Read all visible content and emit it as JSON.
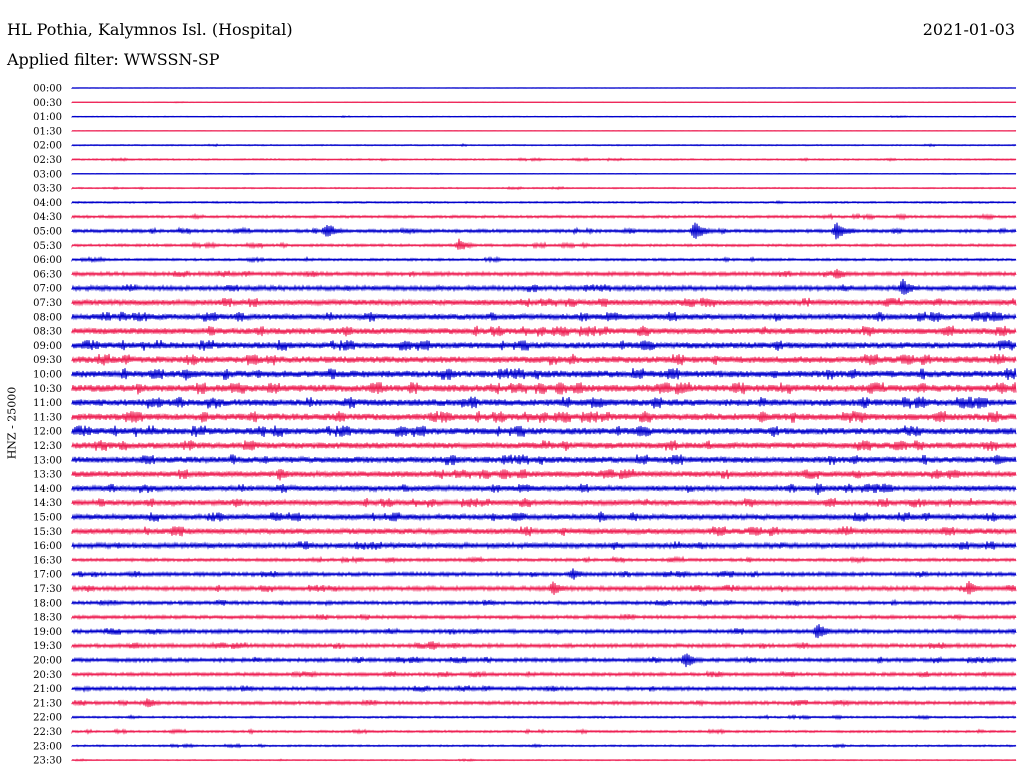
{
  "header": {
    "station": "HL Pothia, Kalymnos Isl. (Hospital)",
    "date": "2021-01-03",
    "filter": "Applied filter: WWSSN-SP"
  },
  "axis": {
    "ylabel": "HNZ - 25000"
  },
  "colors": {
    "even_rows": "#0000cc",
    "odd_rows": "#ee2255"
  },
  "chart_data": {
    "type": "line",
    "ylabel": "HNZ - 25000",
    "rows": [
      "00:00",
      "00:30",
      "01:00",
      "01:30",
      "02:00",
      "02:30",
      "03:00",
      "03:30",
      "04:00",
      "04:30",
      "05:00",
      "05:30",
      "06:00",
      "06:30",
      "07:00",
      "07:30",
      "08:00",
      "08:30",
      "09:00",
      "09:30",
      "10:00",
      "10:30",
      "11:00",
      "11:30",
      "12:00",
      "12:30",
      "13:00",
      "13:30",
      "14:00",
      "14:30",
      "15:00",
      "15:30",
      "16:00",
      "16:30",
      "17:00",
      "17:30",
      "18:00",
      "18:30",
      "19:00",
      "19:30",
      "20:00",
      "20:30",
      "21:00",
      "21:30",
      "22:00",
      "22:30",
      "23:00",
      "23:30"
    ],
    "noise_level": [
      0.2,
      0.3,
      0.4,
      0.2,
      0.6,
      0.7,
      0.3,
      0.6,
      0.8,
      1.2,
      1.5,
      1.2,
      1.1,
      1.8,
      2.2,
      2.6,
      2.8,
      3.0,
      3.0,
      3.2,
      3.3,
      3.4,
      3.3,
      3.3,
      3.2,
      3.0,
      3.0,
      2.8,
      2.6,
      2.6,
      2.6,
      2.8,
      2.4,
      1.4,
      1.8,
      2.0,
      1.6,
      1.6,
      1.8,
      1.8,
      1.8,
      1.6,
      1.7,
      1.6,
      0.9,
      1.0,
      0.8,
      0.5
    ],
    "events": [
      {
        "row": "05:00",
        "time_fraction": 0.27,
        "amplitude": 9
      },
      {
        "row": "05:00",
        "time_fraction": 0.66,
        "amplitude": 11
      },
      {
        "row": "05:00",
        "time_fraction": 0.81,
        "amplitude": 10
      },
      {
        "row": "05:30",
        "time_fraction": 0.41,
        "amplitude": 7
      },
      {
        "row": "06:30",
        "time_fraction": 0.81,
        "amplitude": 7
      },
      {
        "row": "07:00",
        "time_fraction": 0.88,
        "amplitude": 10
      },
      {
        "row": "10:00",
        "time_fraction": 0.12,
        "amplitude": 7
      },
      {
        "row": "11:30",
        "time_fraction": 0.73,
        "amplitude": 7
      },
      {
        "row": "13:00",
        "time_fraction": 0.98,
        "amplitude": 8
      },
      {
        "row": "13:30",
        "time_fraction": 0.22,
        "amplitude": 7
      },
      {
        "row": "14:00",
        "time_fraction": 0.79,
        "amplitude": 7
      },
      {
        "row": "15:00",
        "time_fraction": 0.56,
        "amplitude": 6
      },
      {
        "row": "17:00",
        "time_fraction": 0.53,
        "amplitude": 7
      },
      {
        "row": "17:30",
        "time_fraction": 0.51,
        "amplitude": 8
      },
      {
        "row": "17:30",
        "time_fraction": 0.95,
        "amplitude": 8
      },
      {
        "row": "19:00",
        "time_fraction": 0.79,
        "amplitude": 9
      },
      {
        "row": "19:30",
        "time_fraction": 0.38,
        "amplitude": 6
      },
      {
        "row": "20:00",
        "time_fraction": 0.65,
        "amplitude": 9
      },
      {
        "row": "21:30",
        "time_fraction": 0.08,
        "amplitude": 6
      }
    ]
  }
}
